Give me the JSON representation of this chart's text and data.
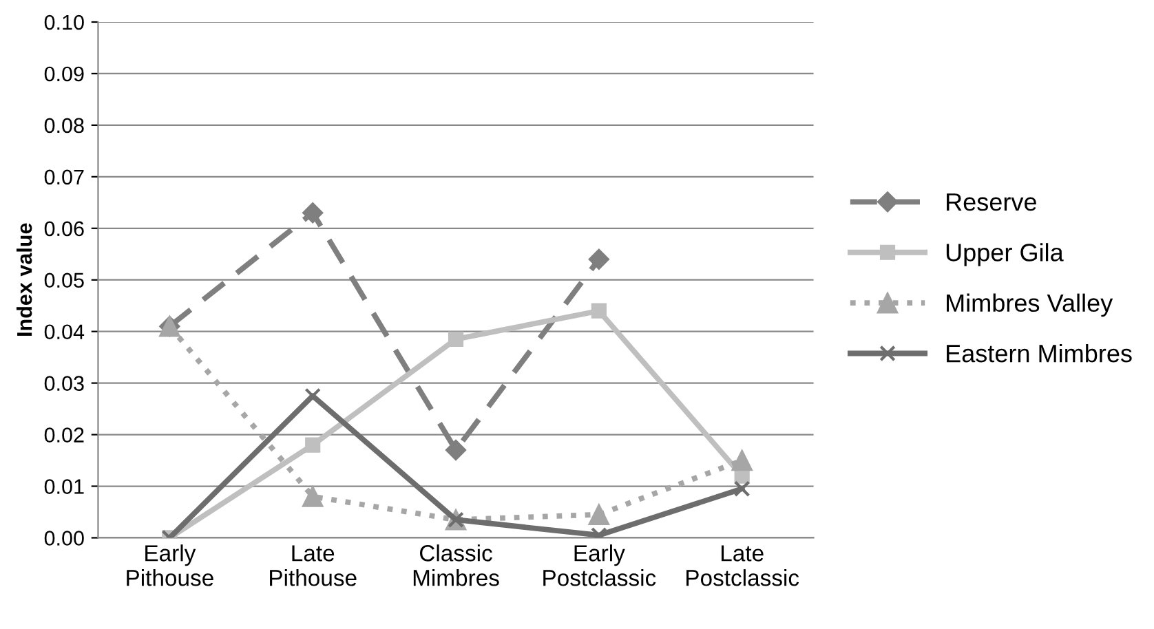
{
  "chart_data": {
    "type": "line",
    "ylabel": "Index value",
    "categories": [
      "Early\nPithouse",
      "Late\nPithouse",
      "Classic\nMimbres",
      "Early\nPostclassic",
      "Late\nPostclassic"
    ],
    "series": [
      {
        "name": "Reserve",
        "color": "#7f7f7f",
        "marker": "diamond",
        "line_style": "dashed",
        "values": [
          0.041,
          0.063,
          0.017,
          0.054,
          null
        ]
      },
      {
        "name": "Upper Gila",
        "color": "#bfbfbf",
        "marker": "square",
        "line_style": "solid",
        "values": [
          0.0,
          0.018,
          0.0385,
          0.044,
          0.012
        ]
      },
      {
        "name": "Mimbres Valley",
        "color": "#a6a6a6",
        "marker": "triangle",
        "line_style": "dotted",
        "values": [
          0.041,
          0.008,
          0.0035,
          0.0045,
          0.015
        ]
      },
      {
        "name": "Eastern Mimbres",
        "color": "#6d6d6d",
        "marker": "cross",
        "line_style": "solid",
        "values": [
          0.0,
          0.0275,
          0.0035,
          0.0005,
          0.0095
        ]
      }
    ],
    "ylim": [
      0,
      0.1
    ],
    "yticks": [
      {
        "value": 0,
        "label": "0.00"
      },
      {
        "value": 0.01,
        "label": "0.01"
      },
      {
        "value": 0.02,
        "label": "0.02"
      },
      {
        "value": 0.03,
        "label": "0.03"
      },
      {
        "value": 0.04,
        "label": "0.04"
      },
      {
        "value": 0.05,
        "label": "0.05"
      },
      {
        "value": 0.06,
        "label": "0.06"
      },
      {
        "value": 0.07,
        "label": "0.07"
      },
      {
        "value": 0.08,
        "label": "0.08"
      },
      {
        "value": 0.09,
        "label": "0.09"
      },
      {
        "value": 0.1,
        "label": "0.10"
      }
    ],
    "grid": "y",
    "legend": "right"
  }
}
